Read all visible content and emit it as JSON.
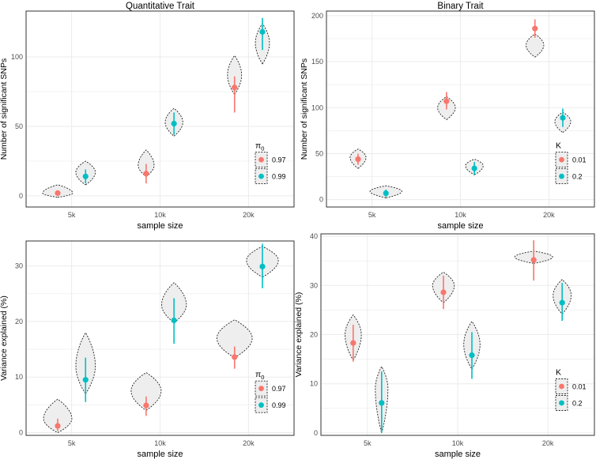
{
  "colors": {
    "pi_097": "#F8766D",
    "pi_099": "#00BFC4",
    "grid": "#EBEBEB",
    "violin_fill": "#EEEEEE",
    "axis_text": "#4D4D4D",
    "panel_border": "#333333"
  },
  "chart_data": [
    {
      "type": "violin-pointrange",
      "title": "Quantitative Trait",
      "xlabel": "sample size",
      "ylabel": "Number of significant SNPs",
      "categories": [
        "5k",
        "10k",
        "20k"
      ],
      "ylim": [
        -8,
        133
      ],
      "yticks": [
        0,
        50,
        100
      ],
      "legend": {
        "title": "π",
        "title_sub": "0",
        "position": "right",
        "labels": [
          "0.97",
          "0.99"
        ]
      },
      "series": [
        {
          "name": "0.97",
          "color": "#F8766D",
          "points": [
            {
              "x": "5k",
              "y": 2,
              "lo": 1,
              "hi": 3
            },
            {
              "x": "10k",
              "y": 16,
              "lo": 9,
              "hi": 23
            },
            {
              "x": "20k",
              "y": 78,
              "lo": 60,
              "hi": 86
            }
          ],
          "violins": [
            {
              "x": "5k",
              "min": -1,
              "max": 8,
              "mode": 2,
              "w": 0.34
            },
            {
              "x": "10k",
              "min": 14,
              "max": 33,
              "mode": 22,
              "w": 0.18
            },
            {
              "x": "20k",
              "min": 73,
              "max": 101,
              "mode": 87,
              "w": 0.16
            }
          ]
        },
        {
          "name": "0.99",
          "color": "#00BFC4",
          "points": [
            {
              "x": "5k",
              "y": 14,
              "lo": 9,
              "hi": 19
            },
            {
              "x": "10k",
              "y": 52,
              "lo": 44,
              "hi": 60
            },
            {
              "x": "20k",
              "y": 118,
              "lo": 105,
              "hi": 128
            }
          ],
          "violins": [
            {
              "x": "5k",
              "min": 8,
              "max": 25,
              "mode": 17,
              "w": 0.22
            },
            {
              "x": "10k",
              "min": 43,
              "max": 63,
              "mode": 53,
              "w": 0.2
            },
            {
              "x": "20k",
              "min": 95,
              "max": 124,
              "mode": 110,
              "w": 0.16
            }
          ]
        }
      ]
    },
    {
      "type": "violin-pointrange",
      "title": "Binary Trait",
      "xlabel": "sample size",
      "ylabel": "Number of significant SNPs",
      "categories": [
        "5k",
        "10k",
        "20k"
      ],
      "ylim": [
        -8,
        205
      ],
      "yticks": [
        0,
        50,
        100,
        150,
        200
      ],
      "legend": {
        "title": "K",
        "title_sub": "",
        "position": "right",
        "labels": [
          "0.01",
          "0.2"
        ]
      },
      "series": [
        {
          "name": "0.01",
          "color": "#F8766D",
          "points": [
            {
              "x": "5k",
              "y": 44,
              "lo": 38,
              "hi": 50
            },
            {
              "x": "10k",
              "y": 107,
              "lo": 98,
              "hi": 117
            },
            {
              "x": "20k",
              "y": 186,
              "lo": 176,
              "hi": 196
            }
          ],
          "violins": [
            {
              "x": "5k",
              "min": 34,
              "max": 55,
              "mode": 46,
              "w": 0.18
            },
            {
              "x": "10k",
              "min": 87,
              "max": 112,
              "mode": 100,
              "w": 0.2
            },
            {
              "x": "20k",
              "min": 155,
              "max": 180,
              "mode": 168,
              "w": 0.2
            }
          ]
        },
        {
          "name": "0.2",
          "color": "#00BFC4",
          "points": [
            {
              "x": "5k",
              "y": 7,
              "lo": 3,
              "hi": 11
            },
            {
              "x": "10k",
              "y": 34,
              "lo": 27,
              "hi": 41
            },
            {
              "x": "20k",
              "y": 89,
              "lo": 79,
              "hi": 99
            }
          ],
          "violins": [
            {
              "x": "5k",
              "min": 2,
              "max": 15,
              "mode": 9,
              "w": 0.36
            },
            {
              "x": "10k",
              "min": 27,
              "max": 44,
              "mode": 37,
              "w": 0.2
            },
            {
              "x": "20k",
              "min": 73,
              "max": 95,
              "mode": 85,
              "w": 0.18
            }
          ]
        }
      ]
    },
    {
      "type": "violin-pointrange",
      "title": "",
      "xlabel": "sample size",
      "ylabel": "Variance explained (%)",
      "categories": [
        "5k",
        "10k",
        "20k"
      ],
      "ylim": [
        -0.5,
        34.5
      ],
      "yticks": [
        0,
        10,
        20,
        30
      ],
      "legend": {
        "title": "π",
        "title_sub": "0",
        "position": "right",
        "labels": [
          "0.97",
          "0.99"
        ]
      },
      "series": [
        {
          "name": "0.97",
          "color": "#F8766D",
          "points": [
            {
              "x": "5k",
              "y": 1.2,
              "lo": 0.3,
              "hi": 2.5
            },
            {
              "x": "10k",
              "y": 4.9,
              "lo": 3.0,
              "hi": 6.5
            },
            {
              "x": "20k",
              "y": 13.6,
              "lo": 11.5,
              "hi": 15.5
            }
          ],
          "violins": [
            {
              "x": "5k",
              "min": 0,
              "max": 6,
              "mode": 2.5,
              "w": 0.32
            },
            {
              "x": "10k",
              "min": 4,
              "max": 10.8,
              "mode": 7.5,
              "w": 0.34
            },
            {
              "x": "20k",
              "min": 13.5,
              "max": 20.3,
              "mode": 17,
              "w": 0.4
            }
          ]
        },
        {
          "name": "0.99",
          "color": "#00BFC4",
          "points": [
            {
              "x": "5k",
              "y": 9.5,
              "lo": 5.5,
              "hi": 13.5
            },
            {
              "x": "10k",
              "y": 20.2,
              "lo": 16.0,
              "hi": 24.2
            },
            {
              "x": "20k",
              "y": 29.9,
              "lo": 26.0,
              "hi": 34.0
            }
          ],
          "violins": [
            {
              "x": "5k",
              "min": 7,
              "max": 18,
              "mode": 12,
              "w": 0.22
            },
            {
              "x": "10k",
              "min": 19.8,
              "max": 27,
              "mode": 23,
              "w": 0.28
            },
            {
              "x": "20k",
              "min": 28,
              "max": 33.5,
              "mode": 31,
              "w": 0.36
            }
          ]
        }
      ]
    },
    {
      "type": "violin-pointrange",
      "title": "",
      "xlabel": "sample size",
      "ylabel": "Variance explained (%)",
      "categories": [
        "5k",
        "10k",
        "20k"
      ],
      "ylim": [
        -0.5,
        40.5
      ],
      "yticks": [
        0,
        10,
        20,
        30,
        40
      ],
      "legend": {
        "title": "K",
        "title_sub": "",
        "position": "right",
        "labels": [
          "0.01",
          "0.2"
        ]
      },
      "series": [
        {
          "name": "0.01",
          "color": "#F8766D",
          "points": [
            {
              "x": "5k",
              "y": 18.3,
              "lo": 14.5,
              "hi": 22.0
            },
            {
              "x": "10k",
              "y": 28.6,
              "lo": 25.2,
              "hi": 32.0
            },
            {
              "x": "20k",
              "y": 35.2,
              "lo": 31.0,
              "hi": 39.2
            }
          ],
          "violins": [
            {
              "x": "5k",
              "min": 14.8,
              "max": 24,
              "mode": 20,
              "w": 0.18
            },
            {
              "x": "10k",
              "min": 26.5,
              "max": 32.7,
              "mode": 30,
              "w": 0.24
            },
            {
              "x": "20k",
              "min": 34.5,
              "max": 37,
              "mode": 35.8,
              "w": 0.42
            }
          ]
        },
        {
          "name": "0.2",
          "color": "#00BFC4",
          "points": [
            {
              "x": "5k",
              "y": 6.1,
              "lo": 0.0,
              "hi": 12.5
            },
            {
              "x": "10k",
              "y": 15.8,
              "lo": 11.0,
              "hi": 20.5
            },
            {
              "x": "20k",
              "y": 26.5,
              "lo": 22.8,
              "hi": 30.5
            }
          ],
          "violins": [
            {
              "x": "5k",
              "min": 0,
              "max": 13.5,
              "mode": 9,
              "w": 0.14
            },
            {
              "x": "10k",
              "min": 13,
              "max": 22.7,
              "mode": 18,
              "w": 0.18
            },
            {
              "x": "20k",
              "min": 24.2,
              "max": 31.2,
              "mode": 28,
              "w": 0.2
            }
          ]
        }
      ]
    }
  ]
}
